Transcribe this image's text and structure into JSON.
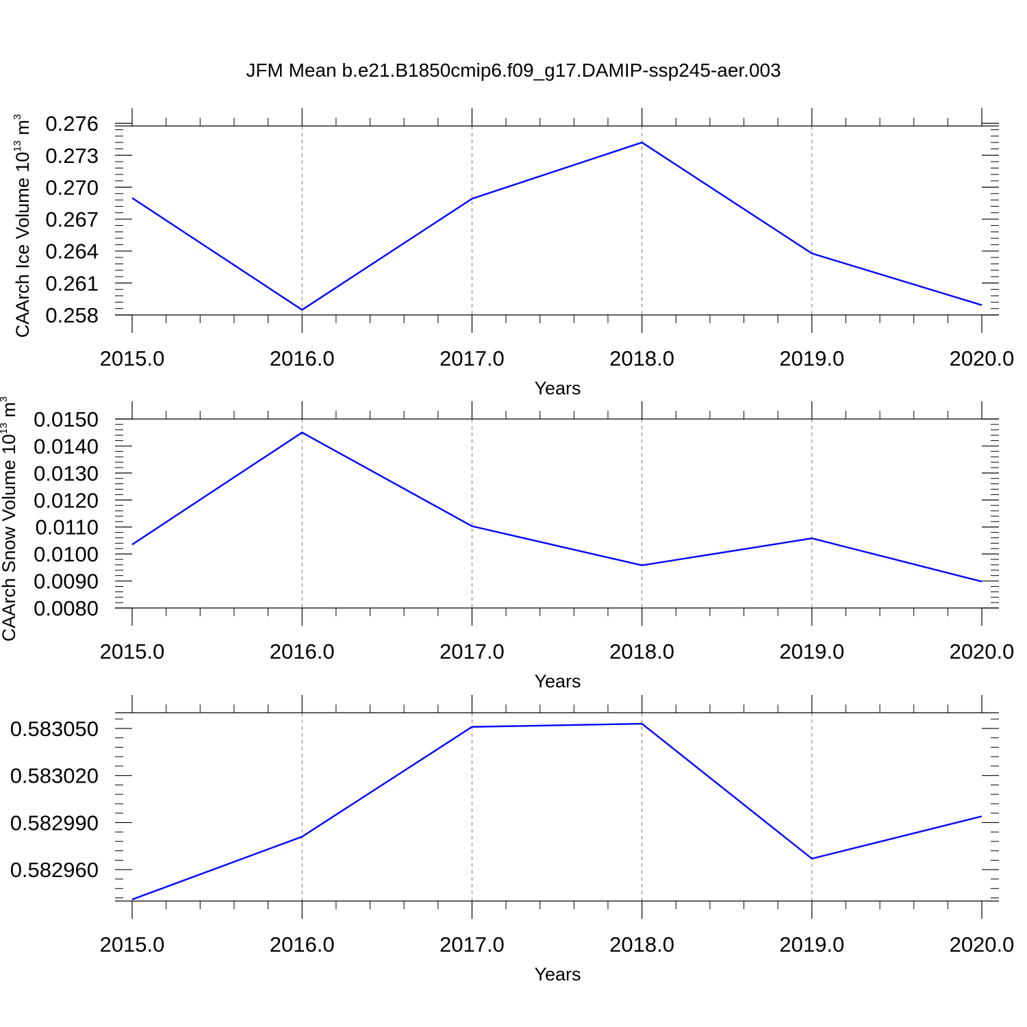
{
  "figure": {
    "title": "JFM Mean b.e21.B1850cmip6.f09_g17.DAMIP-ssp245-aer.003"
  },
  "chart_data": [
    {
      "type": "line",
      "title": "",
      "xlabel": "Years",
      "ylabel": "CAArch Ice Volume 10",
      "ylabel_exp": "13",
      "ylabel_unit": " m",
      "ylabel_unit_exp": "3",
      "x": [
        2015,
        2016,
        2017,
        2018,
        2019,
        2020
      ],
      "x_tick_values": [
        2015,
        2016,
        2017,
        2018,
        2019,
        2020
      ],
      "x_tick_labels": [
        "2015.0",
        "2016.0",
        "2017.0",
        "2018.0",
        "2019.0",
        "2020.0"
      ],
      "xlim": [
        2015,
        2020
      ],
      "y_tick_values": [
        0.258,
        0.261,
        0.264,
        0.267,
        0.27,
        0.273,
        0.276
      ],
      "y_tick_labels": [
        "0.258",
        "0.261",
        "0.264",
        "0.267",
        "0.270",
        "0.273",
        "0.276"
      ],
      "ylim": [
        0.258,
        0.27575
      ],
      "grid": "vertical dashed",
      "series": [
        {
          "color": "#0000ff",
          "values": [
            0.26899,
            0.25848,
            0.26892,
            0.2742,
            0.26378,
            0.25892
          ]
        }
      ]
    },
    {
      "type": "line",
      "title": "",
      "xlabel": "Years",
      "ylabel": "CAArch Snow Volume 10",
      "ylabel_exp": "13",
      "ylabel_unit": " m",
      "ylabel_unit_exp": "3",
      "x": [
        2015,
        2016,
        2017,
        2018,
        2019,
        2020
      ],
      "x_tick_values": [
        2015,
        2016,
        2017,
        2018,
        2019,
        2020
      ],
      "x_tick_labels": [
        "2015.0",
        "2016.0",
        "2017.0",
        "2018.0",
        "2019.0",
        "2020.0"
      ],
      "xlim": [
        2015,
        2020
      ],
      "y_tick_values": [
        0.008,
        0.009,
        0.01,
        0.011,
        0.012,
        0.013,
        0.014,
        0.015
      ],
      "y_tick_labels": [
        "0.0080",
        "0.0090",
        "0.0100",
        "0.0110",
        "0.0120",
        "0.0130",
        "0.0140",
        "0.0150"
      ],
      "ylim": [
        0.008,
        0.015
      ],
      "grid": "vertical dashed",
      "series": [
        {
          "color": "#0000ff",
          "values": [
            0.01035,
            0.0145,
            0.01103,
            0.00958,
            0.01058,
            0.00898
          ]
        }
      ]
    },
    {
      "type": "line",
      "title": "",
      "xlabel": "Years",
      "ylabel": "",
      "x": [
        2015,
        2016,
        2017,
        2018,
        2019,
        2020
      ],
      "x_tick_values": [
        2015,
        2016,
        2017,
        2018,
        2019,
        2020
      ],
      "x_tick_labels": [
        "2015.0",
        "2016.0",
        "2017.0",
        "2018.0",
        "2019.0",
        "2020.0"
      ],
      "xlim": [
        2015,
        2020
      ],
      "y_tick_values": [
        0.58296,
        0.58299,
        0.58302,
        0.58305
      ],
      "y_tick_labels": [
        "0.582960",
        "0.582990",
        "0.583020",
        "0.583050"
      ],
      "ylim": [
        0.58294,
        0.58306
      ],
      "grid": "vertical dashed",
      "series": [
        {
          "color": "#0000ff",
          "values": [
            0.582941,
            0.582981,
            0.583051,
            0.583053,
            0.582967,
            0.582994
          ]
        }
      ]
    }
  ]
}
